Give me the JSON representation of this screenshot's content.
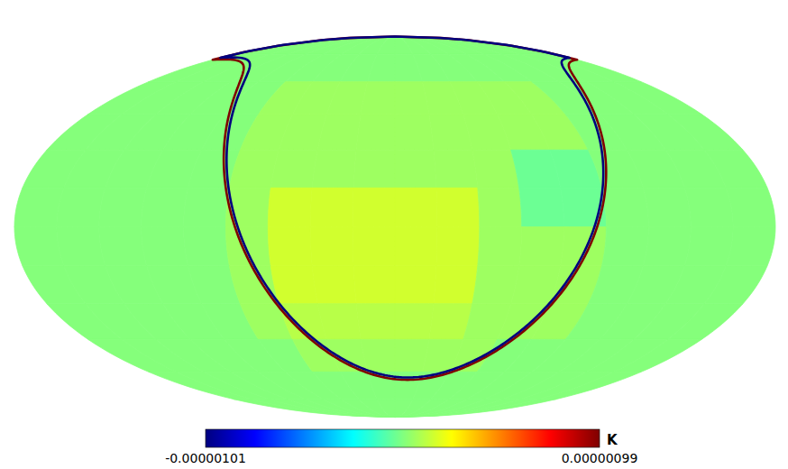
{
  "chart_data": {
    "type": "heatmap",
    "cells": {
      "lon": [
        -170,
        -150,
        -130,
        -110,
        -90,
        -70,
        -50,
        -30,
        -10,
        10,
        30,
        50,
        70,
        90,
        110,
        130,
        150,
        170
      ],
      "lat": [
        82.5,
        67.5,
        52.5,
        37.5,
        22.5,
        7.5,
        -7.5,
        -22.5,
        -37.5,
        -52.5,
        -67.5,
        -82.5
      ],
      "values": [
        [
          0,
          0,
          0,
          0,
          0,
          0,
          0,
          0,
          0,
          0,
          0,
          0,
          0,
          0,
          0,
          0,
          0,
          0
        ],
        [
          0,
          0,
          0,
          0,
          0,
          0,
          0,
          0,
          0,
          0,
          0,
          0,
          0,
          0,
          0,
          0,
          0,
          0
        ],
        [
          0,
          0,
          0,
          0,
          0,
          5e-08,
          5e-08,
          5e-08,
          5e-08,
          5e-08,
          5e-08,
          5e-08,
          5e-08,
          5e-08,
          0,
          0,
          0,
          0
        ],
        [
          0,
          0,
          0,
          0,
          0,
          5e-08,
          5e-08,
          5e-08,
          5e-08,
          5e-08,
          5e-08,
          5e-08,
          5e-08,
          5e-08,
          0,
          0,
          0,
          0
        ],
        [
          0,
          0,
          0,
          0,
          0,
          5e-08,
          5e-08,
          5e-08,
          5e-08,
          5e-08,
          5e-08,
          5e-08,
          -5e-08,
          -5e-08,
          0,
          0,
          0,
          0
        ],
        [
          0,
          0,
          0,
          0,
          0,
          5e-08,
          1.5e-07,
          1.5e-07,
          1.5e-07,
          1.5e-07,
          1.5e-07,
          5e-08,
          -5e-08,
          -5e-08,
          0,
          0,
          0,
          0
        ],
        [
          0,
          0,
          0,
          0,
          0,
          5e-08,
          1.5e-07,
          1.5e-07,
          1.5e-07,
          1.5e-07,
          1.5e-07,
          5e-08,
          5e-08,
          5e-08,
          0,
          0,
          0,
          0
        ],
        [
          0,
          0,
          0,
          0,
          0,
          5e-08,
          1.5e-07,
          1.5e-07,
          1.5e-07,
          1.5e-07,
          1.5e-07,
          5e-08,
          5e-08,
          5e-08,
          0,
          0,
          0,
          0
        ],
        [
          0,
          0,
          0,
          0,
          0,
          5e-08,
          1e-07,
          1e-07,
          1e-07,
          1e-07,
          1e-07,
          5e-08,
          5e-08,
          5e-08,
          0,
          0,
          0,
          0
        ],
        [
          0,
          0,
          0,
          0,
          0,
          0,
          5e-08,
          5e-08,
          5e-08,
          5e-08,
          5e-08,
          5e-08,
          0,
          0,
          0,
          0,
          0,
          0
        ],
        [
          0,
          0,
          0,
          0,
          0,
          0,
          0,
          0,
          0,
          0,
          0,
          0,
          0,
          0,
          0,
          0,
          0,
          0
        ],
        [
          0,
          0,
          0,
          0,
          0,
          0,
          0,
          0,
          0,
          0,
          0,
          0,
          0,
          0,
          0,
          0,
          0,
          0
        ]
      ]
    },
    "features": [
      {
        "center": [
          10,
          22
        ],
        "radius": 86,
        "value": 9.9e-07
      },
      {
        "center": [
          10,
          22
        ],
        "radius": 84.8,
        "value": -1.01e-06
      }
    ],
    "colorbar": {
      "label": "K",
      "range": [
        -1.01e-06,
        9.9e-07
      ],
      "ticks": [
        {
          "value": -1.01e-06,
          "label": "-0.00000101"
        },
        {
          "value": 9.9e-07,
          "label": "0.00000099"
        }
      ]
    }
  }
}
